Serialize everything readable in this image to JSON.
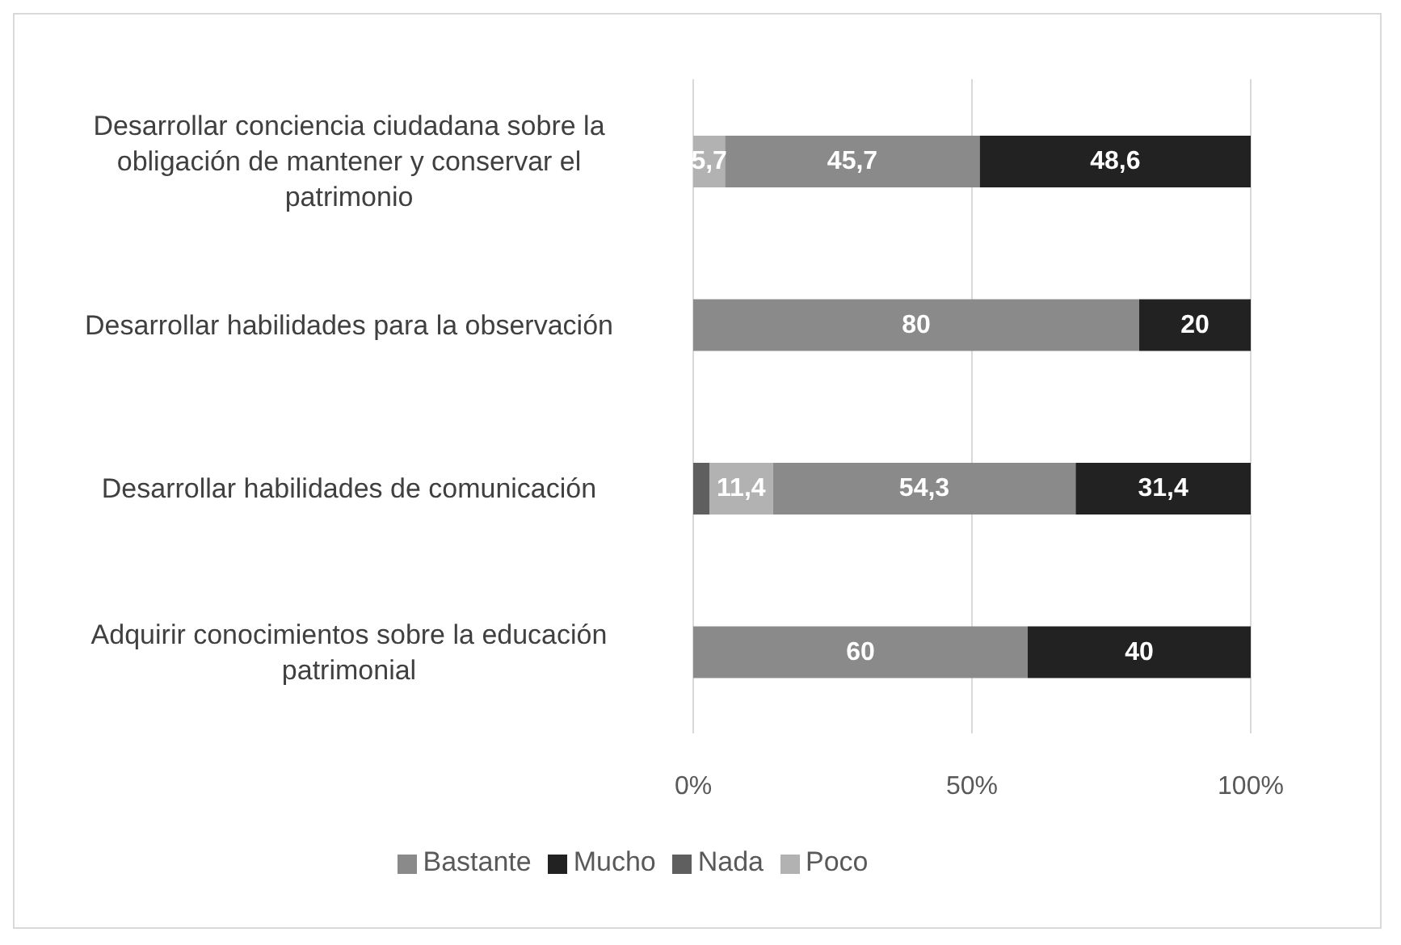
{
  "chart_data": {
    "type": "bar",
    "orientation": "horizontal",
    "stacked": true,
    "categories": [
      "Desarrollar conciencia ciudadana sobre la obligación de mantener y conservar el patrimonio",
      "Desarrollar habilidades para la observación",
      "Desarrollar habilidades de comunicación",
      "Adquirir conocimientos sobre la educación patrimonial"
    ],
    "series": [
      {
        "name": "Nada",
        "color": "#5f5f5f",
        "values": [
          0,
          0,
          2.9,
          0
        ],
        "value_labels": [
          null,
          null,
          null,
          null
        ]
      },
      {
        "name": "Poco",
        "color": "#b2b2b2",
        "values": [
          5.7,
          0,
          11.4,
          0
        ],
        "value_labels": [
          "5,7",
          null,
          "11,4",
          null
        ]
      },
      {
        "name": "Bastante",
        "color": "#8a8a8a",
        "values": [
          45.7,
          80,
          54.3,
          60
        ],
        "value_labels": [
          "45,7",
          "80",
          "54,3",
          "60"
        ]
      },
      {
        "name": "Mucho",
        "color": "#222222",
        "values": [
          48.6,
          20,
          31.4,
          40
        ],
        "value_labels": [
          "48,6",
          "20",
          "31,4",
          "40"
        ]
      }
    ],
    "xlim": [
      0,
      100
    ],
    "xticks": [
      {
        "value": 0,
        "label": "0%"
      },
      {
        "value": 50,
        "label": "50%"
      },
      {
        "value": 100,
        "label": "100%"
      }
    ],
    "grid": "x",
    "legend": "bottom"
  }
}
